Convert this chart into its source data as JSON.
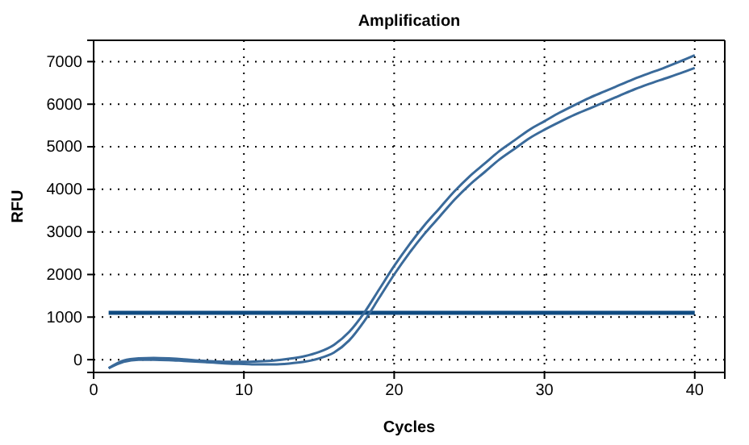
{
  "chart_data": {
    "type": "line",
    "title": "Amplification",
    "xlabel": "Cycles",
    "ylabel": "RFU",
    "x": [
      1,
      2,
      3,
      4,
      5,
      6,
      7,
      8,
      9,
      10,
      11,
      12,
      13,
      14,
      15,
      16,
      17,
      18,
      19,
      20,
      21,
      22,
      23,
      24,
      25,
      26,
      27,
      28,
      29,
      30,
      31,
      32,
      33,
      34,
      35,
      36,
      37,
      38,
      39,
      40
    ],
    "series": [
      {
        "color": "#3a6a9a",
        "values": [
          -200,
          -20,
          30,
          40,
          30,
          10,
          -20,
          -40,
          -50,
          -50,
          -40,
          -20,
          20,
          80,
          180,
          350,
          650,
          1100,
          1650,
          2200,
          2700,
          3150,
          3550,
          3950,
          4300,
          4600,
          4900,
          5150,
          5400,
          5600,
          5800,
          5980,
          6150,
          6300,
          6450,
          6600,
          6730,
          6860,
          7000,
          7150
        ]
      },
      {
        "color": "#3a6a9a",
        "values": [
          -200,
          -50,
          0,
          0,
          -10,
          -30,
          -50,
          -70,
          -90,
          -100,
          -110,
          -110,
          -90,
          -50,
          30,
          170,
          450,
          900,
          1450,
          2000,
          2500,
          2950,
          3350,
          3750,
          4100,
          4400,
          4700,
          4950,
          5200,
          5400,
          5580,
          5750,
          5900,
          6050,
          6200,
          6350,
          6480,
          6600,
          6720,
          6850
        ]
      }
    ],
    "xlim": [
      0,
      42
    ],
    "xticks": [
      0,
      10,
      20,
      30,
      40
    ],
    "ylim": [
      -300,
      7500
    ],
    "yticks": [
      0,
      1000,
      2000,
      3000,
      4000,
      5000,
      6000,
      7000
    ],
    "grid": true,
    "marker": "none",
    "line_style": "solid",
    "ref_lines": [
      {
        "axis": "y",
        "value": 1100,
        "color": "#0f4a80"
      }
    ]
  }
}
